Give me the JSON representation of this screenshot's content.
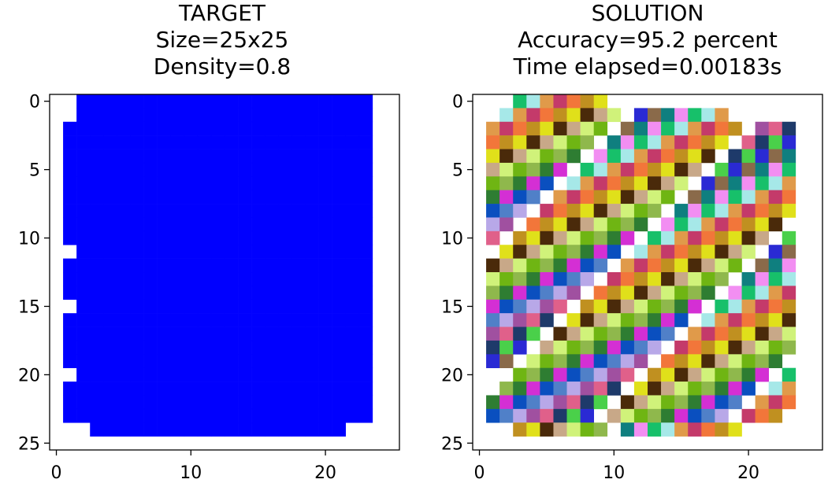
{
  "chart_data": [
    {
      "type": "heatmap",
      "title_lines": [
        "TARGET",
        "Size=25x25",
        "Density=0.8"
      ],
      "xticks": [
        "0",
        "10",
        "20"
      ],
      "yticks": [
        "0",
        "5",
        "10",
        "15",
        "20",
        "25"
      ],
      "xlim": [
        -0.5,
        25.5
      ],
      "ylim": [
        25.5,
        -0.5
      ],
      "fill_color": "#0000ff",
      "empty_color": "#ffffff",
      "grid": [
        "0011111111111111111111110",
        "0011111111111111111111110",
        "0111111111111111111111110",
        "0111111111111111111111110",
        "0111111111111111111111110",
        "0111111111111111111111110",
        "0111111111111111111111110",
        "0111111111111111111111110",
        "0111111111111111111111110",
        "0111111111111111111111110",
        "0111111111111111111111110",
        "0011111111111111111111110",
        "0111111111111111111111110",
        "0111111111111111111111110",
        "0111111111111111111111110",
        "0011111111111111111111110",
        "0111111111111111111111110",
        "0111111111111111111111110",
        "0111111111111111111111110",
        "0111111111111111111111110",
        "0011111111111111111111110",
        "0111111111111111111111110",
        "0111111111111111111111110",
        "0111111111111111111111110",
        "0001111111111111111111000"
      ]
    },
    {
      "type": "heatmap",
      "title_lines": [
        "SOLUTION",
        "Accuracy=95.2 percent",
        "Time elapsed=0.00183s"
      ],
      "xticks": [
        "0",
        "10",
        "20"
      ],
      "yticks": [
        "0",
        "5",
        "10",
        "15",
        "20",
        "25"
      ],
      "xlim": [
        -0.5,
        25.5
      ],
      "ylim": [
        25.5,
        -0.5
      ],
      "empty_color": "#ffffff",
      "palette": [
        "#6fb513",
        "#7a1f8a",
        "#0f7f7f",
        "#c41494",
        "#8fb84c",
        "#2a0f6b",
        "#f28ef2",
        "#3ee03e",
        "#2e7d32",
        "#e05fd3",
        "#17c06a",
        "#e0f5e0",
        "#d42fd4",
        "#8ec8e0",
        "#a6e8e8",
        "#e0401a",
        "#0a4fbf",
        "#3a7a6a",
        "#e09a4a",
        "#8af0c8",
        "#5080c8",
        "#a9a9a9",
        "#c43a6a",
        "#5d6b2e",
        "#b8a8e8",
        "#1fa09a",
        "#f2763a",
        "#3ee8b8",
        "#a050a0",
        "#2ab84a",
        "#c09020",
        "#1e9a2e",
        "#e0608a",
        "#1ab81a",
        "#e0e01a",
        "#d42a5a",
        "#1e3a6a",
        "#6a8e9a",
        "#4a2a0a",
        "#2a2a2a",
        "#4ad04a",
        "#1a6a4a",
        "#c8a888",
        "#f2a0c0",
        "#2a2ad4",
        "#f29a1a",
        "#d0f27a",
        "#1fd0e8",
        "#8a6a4a",
        "#b8b8b8"
      ],
      "grid": [
        "0001234567000000000000000",
        "0012345678901234567000000",
        "0123456789012345678901230",
        "0234567890123456789012340",
        "0345678901234567890123450",
        "0456789012345678901234560",
        "0567890123456789012345670",
        "0678901234567890123456780",
        "0789012345678901234567890",
        "0890123456789012345678900",
        "0901234567890123456789010",
        "0012345678901234567890120",
        "0123456789012345678901230",
        "0234567890123456789012340",
        "0345678901234567890123450",
        "0456789012345678901234560",
        "0567890123456789012345670",
        "0678901234567890123456780",
        "0789012345678901234567890",
        "0890123456789012345678900",
        "0001234567890123456789010",
        "0012345678901234567890120",
        "0123456789012345678901230",
        "0234567890123456789012300",
        "0003456789012345678900000"
      ]
    }
  ]
}
